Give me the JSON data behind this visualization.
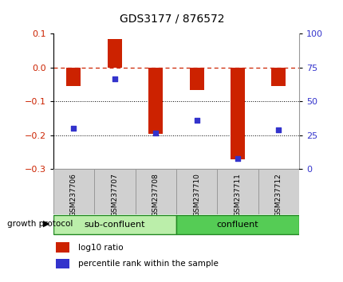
{
  "title": "GDS3177 / 876572",
  "samples": [
    "GSM237706",
    "GSM237707",
    "GSM237708",
    "GSM237710",
    "GSM237711",
    "GSM237712"
  ],
  "log10_ratio": [
    -0.055,
    0.085,
    -0.195,
    -0.065,
    -0.27,
    -0.055
  ],
  "percentile_rank": [
    30,
    67,
    27,
    36,
    8,
    29
  ],
  "ylim_left": [
    -0.3,
    0.1
  ],
  "ylim_right": [
    0,
    100
  ],
  "yticks_left": [
    -0.3,
    -0.2,
    -0.1,
    0.0,
    0.1
  ],
  "yticks_right": [
    0,
    25,
    50,
    75,
    100
  ],
  "bar_color": "#cc2200",
  "dot_color": "#3333cc",
  "hline_color": "#cc2200",
  "gridline_vals": [
    -0.1,
    -0.2
  ],
  "sub_confluent_label": "sub-confluent",
  "confluent_label": "confluent",
  "growth_protocol_label": "growth protocol",
  "legend_bar_label": "log10 ratio",
  "legend_dot_label": "percentile rank within the sample",
  "bar_width": 0.35,
  "bg_color": "#ffffff",
  "tick_label_color_left": "#cc2200",
  "tick_label_color_right": "#3333cc",
  "sub_confluent_color": "#bbeeaa",
  "confluent_color": "#55cc55",
  "sample_box_color": "#d0d0d0",
  "sample_box_edge": "#999999"
}
